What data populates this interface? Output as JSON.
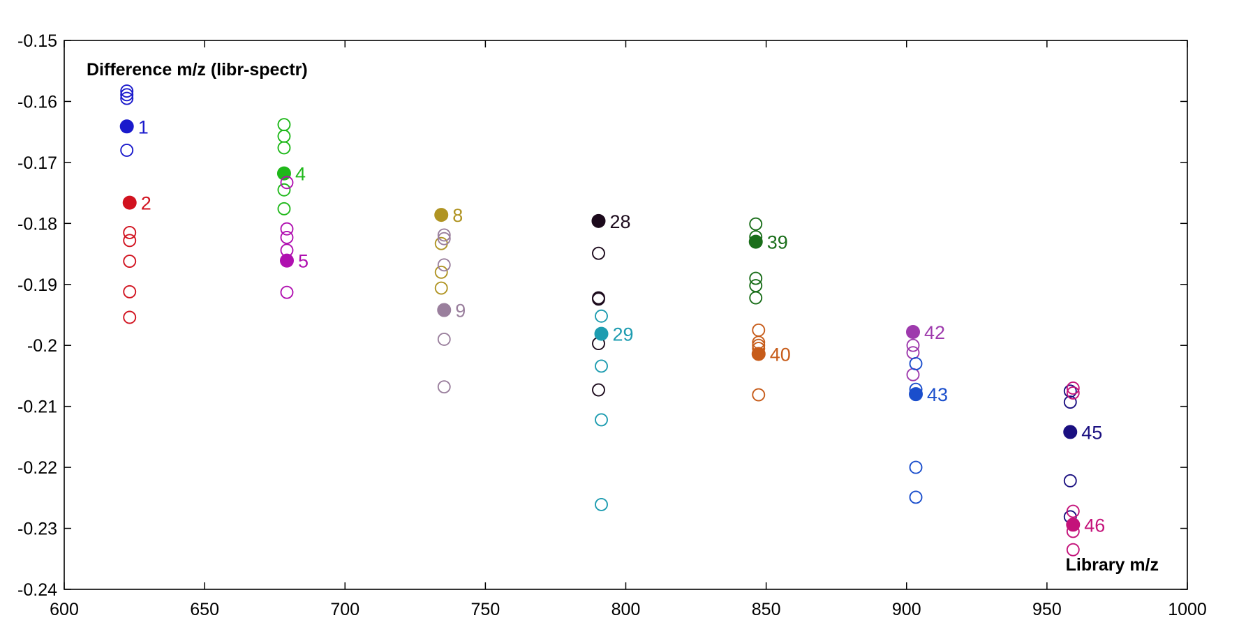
{
  "chart_data": {
    "type": "scatter",
    "title": "",
    "annotations": {
      "y_annotation": "Difference m/z (libr-spectr)",
      "x_annotation": "Library m/z"
    },
    "xlim": [
      600,
      1000
    ],
    "ylim": [
      -0.24,
      -0.15
    ],
    "x_ticks": [
      "600",
      "650",
      "700",
      "750",
      "800",
      "850",
      "900",
      "950",
      "1000"
    ],
    "y_ticks": [
      "-0.15",
      "-0.16",
      "-0.17",
      "-0.18",
      "-0.19",
      "-0.2",
      "-0.21",
      "-0.22",
      "-0.23",
      "-0.24"
    ],
    "grid": false,
    "series": [
      {
        "label": "1",
        "color": "#1a1acc",
        "filled": [
          [
            622.3,
            -0.1641
          ]
        ],
        "open": [
          [
            622.3,
            -0.1583
          ],
          [
            622.3,
            -0.1589
          ],
          [
            622.3,
            -0.1595
          ],
          [
            622.3,
            -0.168
          ]
        ]
      },
      {
        "label": "2",
        "color": "#d1121f",
        "filled": [
          [
            623.3,
            -0.1766
          ]
        ],
        "open": [
          [
            623.3,
            -0.1815
          ],
          [
            623.3,
            -0.1828
          ],
          [
            623.3,
            -0.1862
          ],
          [
            623.3,
            -0.1912
          ],
          [
            623.3,
            -0.1954
          ]
        ]
      },
      {
        "label": "4",
        "color": "#1fb81a",
        "filled": [
          [
            678.3,
            -0.1718
          ]
        ],
        "open": [
          [
            678.3,
            -0.1638
          ],
          [
            678.3,
            -0.1657
          ],
          [
            678.3,
            -0.1676
          ],
          [
            678.3,
            -0.1745
          ],
          [
            678.3,
            -0.1776
          ]
        ]
      },
      {
        "label": "5",
        "color": "#b010b0",
        "filled": [
          [
            679.3,
            -0.1861
          ]
        ],
        "open": [
          [
            679.3,
            -0.1733
          ],
          [
            679.3,
            -0.1809
          ],
          [
            679.3,
            -0.1823
          ],
          [
            679.3,
            -0.1844
          ],
          [
            679.3,
            -0.1913
          ]
        ]
      },
      {
        "label": "8",
        "color": "#b09423",
        "filled": [
          [
            734.3,
            -0.1786
          ]
        ],
        "open": [
          [
            734.3,
            -0.1833
          ],
          [
            734.3,
            -0.188
          ],
          [
            734.3,
            -0.1906
          ]
        ]
      },
      {
        "label": "9",
        "color": "#9a7f9d",
        "filled": [
          [
            735.3,
            -0.1942
          ]
        ],
        "open": [
          [
            735.3,
            -0.1819
          ],
          [
            735.3,
            -0.1825
          ],
          [
            735.3,
            -0.1868
          ],
          [
            735.3,
            -0.199
          ],
          [
            735.3,
            -0.2068
          ]
        ]
      },
      {
        "label": "28",
        "color": "#1c0a1c",
        "filled": [
          [
            790.3,
            -0.1796
          ]
        ],
        "open": [
          [
            790.3,
            -0.1849
          ],
          [
            790.3,
            -0.1922
          ],
          [
            790.3,
            -0.1924
          ],
          [
            790.3,
            -0.1997
          ],
          [
            790.3,
            -0.2073
          ]
        ]
      },
      {
        "label": "29",
        "color": "#1d9cb0",
        "filled": [
          [
            791.3,
            -0.1981
          ]
        ],
        "open": [
          [
            791.3,
            -0.1952
          ],
          [
            791.3,
            -0.2034
          ],
          [
            791.3,
            -0.2122
          ],
          [
            791.3,
            -0.2261
          ]
        ]
      },
      {
        "label": "39",
        "color": "#1a6e1a",
        "filled": [
          [
            846.3,
            -0.183
          ]
        ],
        "open": [
          [
            846.3,
            -0.1801
          ],
          [
            846.3,
            -0.1822
          ],
          [
            846.3,
            -0.189
          ],
          [
            846.3,
            -0.1902
          ],
          [
            846.3,
            -0.1922
          ]
        ]
      },
      {
        "label": "40",
        "color": "#c75c1a",
        "filled": [
          [
            847.3,
            -0.2014
          ]
        ],
        "open": [
          [
            847.3,
            -0.1975
          ],
          [
            847.3,
            -0.1995
          ],
          [
            847.3,
            -0.2
          ],
          [
            847.3,
            -0.2005
          ],
          [
            847.3,
            -0.2081
          ]
        ]
      },
      {
        "label": "42",
        "color": "#9e3aad",
        "filled": [
          [
            902.3,
            -0.1978
          ]
        ],
        "open": [
          [
            902.3,
            -0.2
          ],
          [
            902.3,
            -0.2012
          ],
          [
            902.3,
            -0.2048
          ]
        ]
      },
      {
        "label": "43",
        "color": "#1a4ecc",
        "filled": [
          [
            903.3,
            -0.208
          ]
        ],
        "open": [
          [
            903.3,
            -0.203
          ],
          [
            903.3,
            -0.2072
          ],
          [
            903.3,
            -0.22
          ],
          [
            903.3,
            -0.2249
          ]
        ]
      },
      {
        "label": "45",
        "color": "#1a0f80",
        "filled": [
          [
            958.3,
            -0.2142
          ]
        ],
        "open": [
          [
            958.3,
            -0.2075
          ],
          [
            958.3,
            -0.2093
          ],
          [
            958.3,
            -0.2222
          ],
          [
            958.3,
            -0.2281
          ]
        ]
      },
      {
        "label": "46",
        "color": "#c4127a",
        "filled": [
          [
            959.3,
            -0.2294
          ]
        ],
        "open": [
          [
            959.3,
            -0.207
          ],
          [
            959.3,
            -0.2078
          ],
          [
            959.3,
            -0.2272
          ],
          [
            959.3,
            -0.2305
          ],
          [
            959.3,
            -0.2335
          ]
        ]
      }
    ]
  }
}
